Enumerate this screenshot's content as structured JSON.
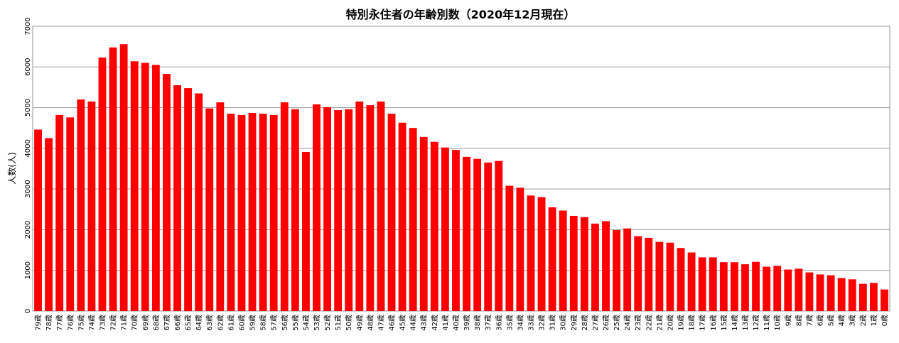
{
  "chart_data": {
    "type": "bar",
    "title": "特別永住者の年齢別数（2020年12月現在）",
    "xlabel": "",
    "ylabel": "人数(人)",
    "ylim": [
      0,
      7000
    ],
    "yticks": [
      0,
      1000,
      2000,
      3000,
      4000,
      5000,
      6000,
      7000
    ],
    "grid": true,
    "bar_color": "#ff0000",
    "categories": [
      "79歳",
      "78歳",
      "77歳",
      "76歳",
      "75歳",
      "74歳",
      "73歳",
      "72歳",
      "71歳",
      "70歳",
      "69歳",
      "68歳",
      "67歳",
      "66歳",
      "65歳",
      "64歳",
      "63歳",
      "62歳",
      "61歳",
      "60歳",
      "59歳",
      "58歳",
      "57歳",
      "56歳",
      "55歳",
      "54歳",
      "53歳",
      "52歳",
      "51歳",
      "50歳",
      "49歳",
      "48歳",
      "47歳",
      "46歳",
      "45歳",
      "44歳",
      "43歳",
      "42歳",
      "41歳",
      "40歳",
      "39歳",
      "38歳",
      "37歳",
      "36歳",
      "35歳",
      "34歳",
      "33歳",
      "32歳",
      "31歳",
      "30歳",
      "29歳",
      "28歳",
      "27歳",
      "26歳",
      "25歳",
      "24歳",
      "23歳",
      "22歳",
      "21歳",
      "20歳",
      "19歳",
      "18歳",
      "17歳",
      "16歳",
      "15歳",
      "14歳",
      "13歳",
      "12歳",
      "11歳",
      "10歳",
      "9歳",
      "8歳",
      "7歳",
      "6歳",
      "5歳",
      "4歳",
      "3歳",
      "2歳",
      "1歳",
      "0歳"
    ],
    "values": [
      4460,
      4250,
      4820,
      4760,
      5200,
      5150,
      6230,
      6480,
      6560,
      6140,
      6100,
      6050,
      5830,
      5550,
      5480,
      5350,
      4980,
      5130,
      4850,
      4820,
      4870,
      4850,
      4820,
      5130,
      4960,
      3910,
      5080,
      5010,
      4940,
      4960,
      5150,
      5060,
      5150,
      4850,
      4630,
      4500,
      4280,
      4160,
      4020,
      3960,
      3790,
      3740,
      3650,
      3690,
      3080,
      3030,
      2840,
      2800,
      2550,
      2470,
      2340,
      2310,
      2150,
      2210,
      1990,
      2030,
      1840,
      1800,
      1700,
      1680,
      1550,
      1440,
      1320,
      1320,
      1200,
      1200,
      1150,
      1210,
      1090,
      1110,
      1020,
      1040,
      950,
      900,
      880,
      810,
      780,
      670,
      690,
      530
    ]
  }
}
